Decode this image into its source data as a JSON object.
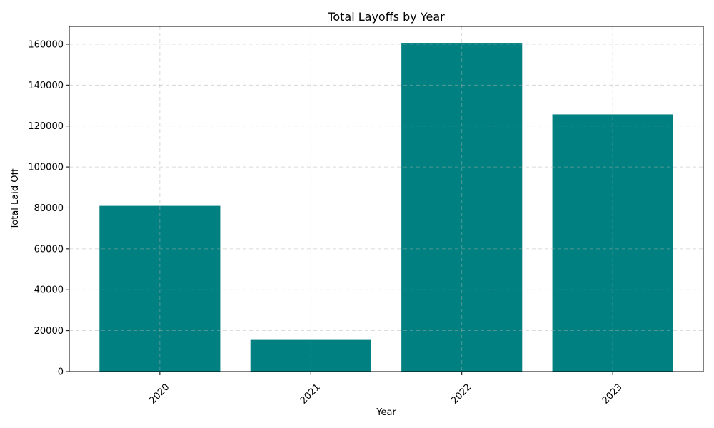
{
  "chart_data": {
    "type": "bar",
    "title": "Total Layoffs by Year",
    "xlabel": "Year",
    "ylabel": "Total Laid Off",
    "categories": [
      "2020",
      "2021",
      "2022",
      "2023"
    ],
    "values": [
      80998,
      15823,
      160661,
      125677
    ],
    "ylim": [
      0,
      168694
    ],
    "yticks": [
      0,
      20000,
      40000,
      60000,
      80000,
      100000,
      120000,
      140000,
      160000
    ],
    "bar_color": "#008080",
    "grid": true,
    "x_tick_rotation_deg": 45
  }
}
